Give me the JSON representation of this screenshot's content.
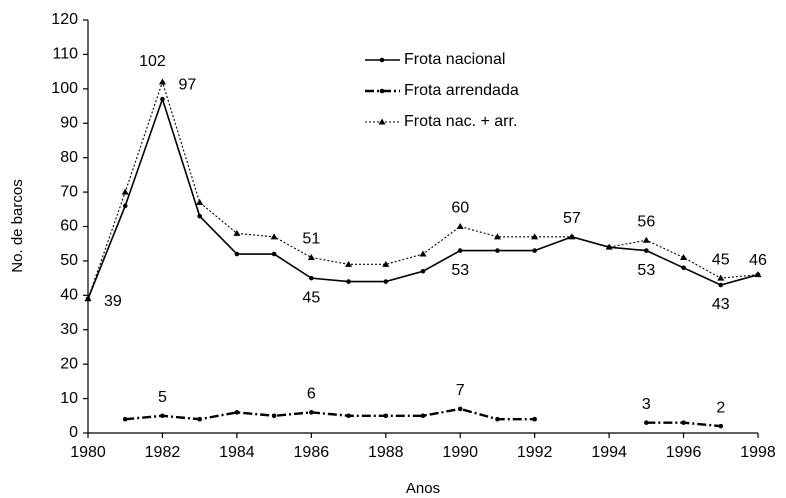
{
  "chart_data": {
    "type": "line",
    "xlabel": "Anos",
    "ylabel": "No. de barcos",
    "x": [
      1980,
      1981,
      1982,
      1983,
      1984,
      1985,
      1986,
      1987,
      1988,
      1989,
      1990,
      1991,
      1992,
      1993,
      1994,
      1995,
      1996,
      1997,
      1998
    ],
    "xlim": [
      1980,
      1998
    ],
    "xticks": [
      1980,
      1982,
      1984,
      1986,
      1988,
      1990,
      1992,
      1994,
      1996,
      1998
    ],
    "ylim": [
      0,
      120
    ],
    "yticks": [
      0,
      10,
      20,
      30,
      40,
      50,
      60,
      70,
      80,
      90,
      100,
      110,
      120
    ],
    "legend": "upper center",
    "series": [
      {
        "name": "Frota nacional",
        "color": "#000000",
        "values": [
          39,
          66,
          97,
          63,
          52,
          52,
          45,
          44,
          44,
          47,
          53,
          53,
          53,
          57,
          54,
          53,
          48,
          43,
          46
        ],
        "value_labels": [
          "39",
          null,
          "97",
          null,
          null,
          null,
          "45",
          null,
          null,
          null,
          "53",
          null,
          null,
          null,
          null,
          "53",
          null,
          "43",
          "46"
        ]
      },
      {
        "name": "Frota arrendada",
        "color": "#000000",
        "values": [
          null,
          4,
          5,
          4,
          6,
          5,
          6,
          5,
          5,
          5,
          7,
          4,
          4,
          null,
          null,
          3,
          3,
          2,
          null
        ],
        "value_labels": [
          null,
          null,
          "5",
          null,
          null,
          null,
          "6",
          null,
          null,
          null,
          "7",
          null,
          null,
          null,
          null,
          "3",
          null,
          "2",
          null
        ]
      },
      {
        "name": "Frota nac. + arr.",
        "color": "#000000",
        "values": [
          39,
          70,
          102,
          67,
          58,
          57,
          51,
          49,
          49,
          52,
          60,
          57,
          57,
          57,
          54,
          56,
          51,
          45,
          46
        ],
        "value_labels": [
          null,
          null,
          "102",
          null,
          null,
          null,
          "51",
          null,
          null,
          null,
          "60",
          null,
          null,
          "57",
          null,
          "56",
          null,
          "45",
          null
        ]
      }
    ]
  }
}
